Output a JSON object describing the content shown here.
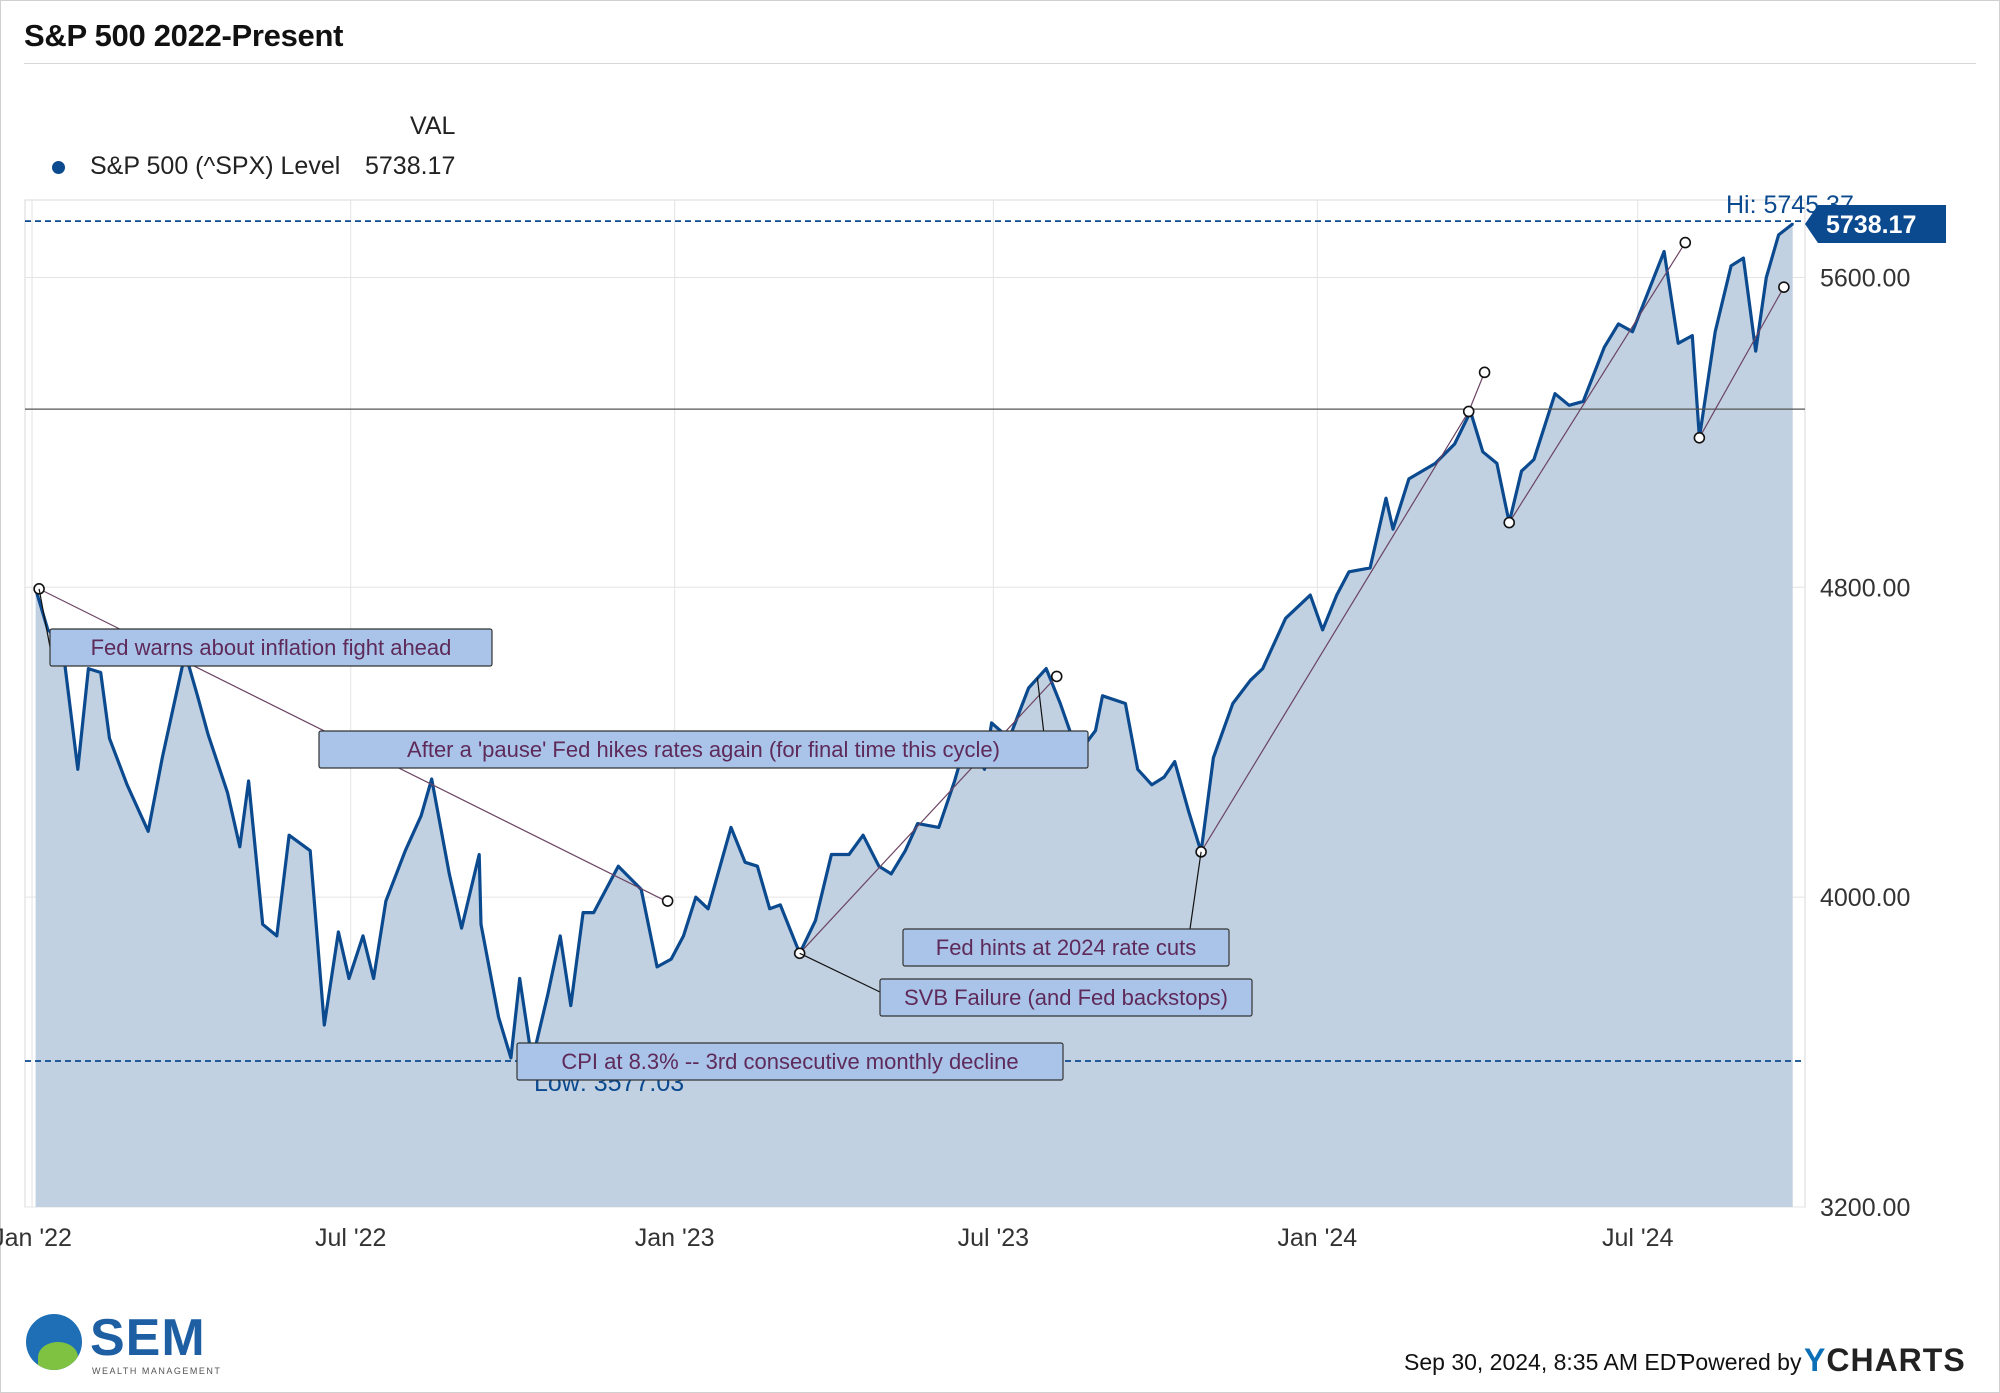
{
  "header": {
    "title": "S&P 500 2022-Present"
  },
  "legend": {
    "column_header": "VAL",
    "series_name": "S&P 500 (^SPX) Level",
    "series_value": "5738.17",
    "color": "#0b4a8f"
  },
  "footer": {
    "timestamp": "Sep 30, 2024, 8:35 AM EDT",
    "powered_by": "Powered by",
    "brand_y": "Y",
    "brand_rest": "CHARTS"
  },
  "logo": {
    "name": "SEM",
    "subtitle": "WEALTH MANAGEMENT"
  },
  "colors": {
    "line": "#0b4a8f",
    "area": "#c1d1e1",
    "annotation_fill": "#a9c4e8",
    "annotation_text": "#5e2a5a",
    "current_value_bg": "#0b4a8f"
  },
  "chart_data": {
    "type": "area",
    "title": "S&P 500 2022-Present",
    "y_range": [
      3200,
      5800
    ],
    "y_ticks": [
      "3200.00",
      "4000.00",
      "4800.00",
      "5600.00"
    ],
    "x_ticks": [
      "Jan '22",
      "Jul '22",
      "Jan '23",
      "Jul '23",
      "Jan '24",
      "Jul '24"
    ],
    "reference_level": 5260,
    "high": {
      "label": "Hi: 5745.37",
      "value": 5745.37
    },
    "low": {
      "label": "Low: 3577.03",
      "value": 3577.03
    },
    "current": {
      "label": "5738.17",
      "value": 5738.17
    },
    "series": [
      {
        "name": "S&P 500 (^SPX) Level",
        "points": [
          [
            "2022-01-03",
            4796
          ],
          [
            "2022-01-10",
            4690
          ],
          [
            "2022-01-18",
            4660
          ],
          [
            "2022-01-27",
            4330
          ],
          [
            "2022-02-02",
            4590
          ],
          [
            "2022-02-09",
            4580
          ],
          [
            "2022-02-14",
            4410
          ],
          [
            "2022-02-24",
            4290
          ],
          [
            "2022-03-08",
            4170
          ],
          [
            "2022-03-16",
            4360
          ],
          [
            "2022-03-29",
            4630
          ],
          [
            "2022-04-05",
            4520
          ],
          [
            "2022-04-11",
            4420
          ],
          [
            "2022-04-22",
            4270
          ],
          [
            "2022-04-29",
            4130
          ],
          [
            "2022-05-04",
            4300
          ],
          [
            "2022-05-12",
            3930
          ],
          [
            "2022-05-20",
            3900
          ],
          [
            "2022-05-27",
            4160
          ],
          [
            "2022-06-08",
            4120
          ],
          [
            "2022-06-16",
            3670
          ],
          [
            "2022-06-24",
            3910
          ],
          [
            "2022-06-30",
            3790
          ],
          [
            "2022-07-08",
            3900
          ],
          [
            "2022-07-14",
            3790
          ],
          [
            "2022-07-21",
            3990
          ],
          [
            "2022-08-01",
            4120
          ],
          [
            "2022-08-10",
            4210
          ],
          [
            "2022-08-16",
            4305
          ],
          [
            "2022-08-26",
            4060
          ],
          [
            "2022-09-02",
            3920
          ],
          [
            "2022-09-12",
            4110
          ],
          [
            "2022-09-13",
            3930
          ],
          [
            "2022-09-23",
            3690
          ],
          [
            "2022-09-30",
            3585
          ],
          [
            "2022-10-05",
            3790
          ],
          [
            "2022-10-12",
            3577
          ],
          [
            "2022-10-21",
            3750
          ],
          [
            "2022-10-28",
            3900
          ],
          [
            "2022-11-03",
            3720
          ],
          [
            "2022-11-10",
            3960
          ],
          [
            "2022-11-16",
            3960
          ],
          [
            "2022-11-30",
            4080
          ],
          [
            "2022-12-13",
            4020
          ],
          [
            "2022-12-22",
            3820
          ],
          [
            "2022-12-30",
            3840
          ],
          [
            "2023-01-06",
            3900
          ],
          [
            "2023-01-13",
            4000
          ],
          [
            "2023-01-20",
            3970
          ],
          [
            "2023-02-02",
            4180
          ],
          [
            "2023-02-10",
            4090
          ],
          [
            "2023-02-17",
            4080
          ],
          [
            "2023-02-24",
            3970
          ],
          [
            "2023-03-02",
            3980
          ],
          [
            "2023-03-13",
            3855
          ],
          [
            "2023-03-22",
            3940
          ],
          [
            "2023-03-31",
            4110
          ],
          [
            "2023-04-10",
            4110
          ],
          [
            "2023-04-18",
            4160
          ],
          [
            "2023-04-27",
            4080
          ],
          [
            "2023-05-04",
            4060
          ],
          [
            "2023-05-12",
            4120
          ],
          [
            "2023-05-19",
            4190
          ],
          [
            "2023-05-31",
            4180
          ],
          [
            "2023-06-09",
            4300
          ],
          [
            "2023-06-16",
            4410
          ],
          [
            "2023-06-26",
            4330
          ],
          [
            "2023-06-30",
            4450
          ],
          [
            "2023-07-10",
            4410
          ],
          [
            "2023-07-21",
            4540
          ],
          [
            "2023-07-31",
            4590
          ],
          [
            "2023-08-08",
            4500
          ],
          [
            "2023-08-18",
            4370
          ],
          [
            "2023-08-28",
            4430
          ],
          [
            "2023-09-01",
            4520
          ],
          [
            "2023-09-14",
            4500
          ],
          [
            "2023-09-21",
            4330
          ],
          [
            "2023-09-29",
            4290
          ],
          [
            "2023-10-06",
            4310
          ],
          [
            "2023-10-12",
            4350
          ],
          [
            "2023-10-20",
            4220
          ],
          [
            "2023-10-27",
            4117
          ],
          [
            "2023-11-03",
            4360
          ],
          [
            "2023-11-14",
            4500
          ],
          [
            "2023-11-24",
            4560
          ],
          [
            "2023-12-01",
            4590
          ],
          [
            "2023-12-14",
            4720
          ],
          [
            "2023-12-28",
            4780
          ],
          [
            "2024-01-04",
            4690
          ],
          [
            "2024-01-12",
            4780
          ],
          [
            "2024-01-19",
            4840
          ],
          [
            "2024-01-31",
            4850
          ],
          [
            "2024-02-09",
            5030
          ],
          [
            "2024-02-13",
            4950
          ],
          [
            "2024-02-22",
            5080
          ],
          [
            "2024-03-08",
            5120
          ],
          [
            "2024-03-19",
            5170
          ],
          [
            "2024-03-28",
            5254
          ],
          [
            "2024-04-04",
            5150
          ],
          [
            "2024-04-12",
            5120
          ],
          [
            "2024-04-19",
            4967
          ],
          [
            "2024-04-26",
            5100
          ],
          [
            "2024-05-03",
            5130
          ],
          [
            "2024-05-15",
            5300
          ],
          [
            "2024-05-23",
            5270
          ],
          [
            "2024-05-31",
            5280
          ],
          [
            "2024-06-12",
            5420
          ],
          [
            "2024-06-20",
            5480
          ],
          [
            "2024-06-28",
            5460
          ],
          [
            "2024-07-16",
            5667
          ],
          [
            "2024-07-24",
            5430
          ],
          [
            "2024-08-01",
            5450
          ],
          [
            "2024-08-05",
            5186
          ],
          [
            "2024-08-14",
            5460
          ],
          [
            "2024-08-23",
            5630
          ],
          [
            "2024-08-30",
            5650
          ],
          [
            "2024-09-06",
            5410
          ],
          [
            "2024-09-12",
            5600
          ],
          [
            "2024-09-19",
            5710
          ],
          [
            "2024-09-27",
            5738.17
          ]
        ]
      }
    ],
    "annotations": [
      {
        "text": "Fed warns about inflation fight ahead",
        "date": "2022-01-05",
        "value": 4796
      },
      {
        "text": "After a 'pause' Fed hikes rates again (for final time this cycle)",
        "date": "2023-07-26",
        "value": 4566
      },
      {
        "text": "Fed hints at 2024 rate cuts",
        "date": "2023-10-27",
        "value": 4117
      },
      {
        "text": "SVB Failure (and Fed backstops)",
        "date": "2023-03-13",
        "value": 3855
      },
      {
        "text": "CPI at 8.3% -- 3rd consecutive monthly decline",
        "date": "2022-10-12",
        "value": 3577
      }
    ]
  }
}
